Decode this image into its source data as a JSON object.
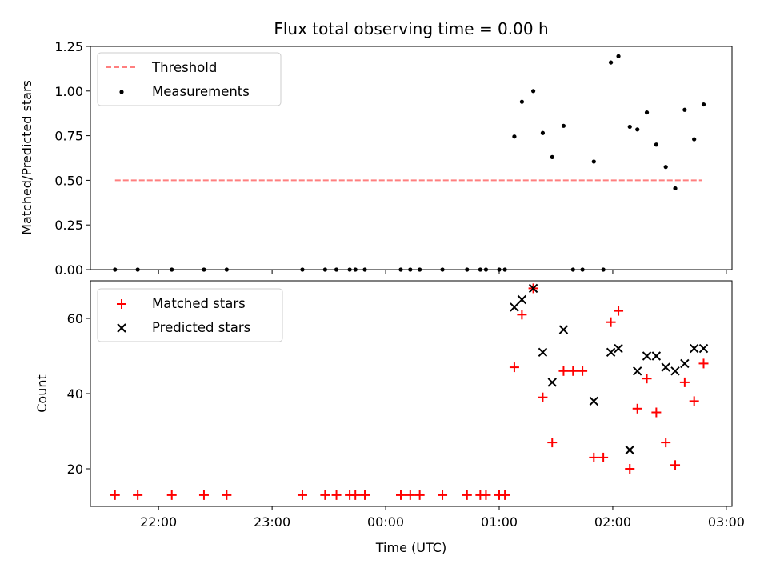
{
  "chart_data": [
    {
      "type": "scatter",
      "title": "Flux total observing time = 0.00 h",
      "xlabel": "",
      "ylabel": "Matched/Predicted stars",
      "ylim": [
        0,
        1.25
      ],
      "yticks": [
        0.0,
        0.25,
        0.5,
        0.75,
        1.0,
        1.25
      ],
      "ytick_labels": [
        "0.00",
        "0.25",
        "0.50",
        "0.75",
        "1.00",
        "1.25"
      ],
      "x_unit": "hours since midnight (UTC)",
      "legend": {
        "position": "top-left",
        "entries": [
          "Threshold",
          "Measurements"
        ]
      },
      "threshold": {
        "name": "Threshold",
        "y": 0.5,
        "x_start": "21:37",
        "x_end": "02:47",
        "color": "#ff7f7f",
        "style": "dashed"
      },
      "series": [
        {
          "name": "Measurements",
          "color": "#000000",
          "marker": "dot",
          "points": [
            [
              "21:37",
              0.0
            ],
            [
              "21:49",
              0.0
            ],
            [
              "22:07",
              0.0
            ],
            [
              "22:24",
              0.0
            ],
            [
              "22:36",
              0.0
            ],
            [
              "23:16",
              0.0
            ],
            [
              "23:28",
              0.0
            ],
            [
              "23:34",
              0.0
            ],
            [
              "23:41",
              0.0
            ],
            [
              "23:44",
              0.0
            ],
            [
              "23:49",
              0.0
            ],
            [
              "00:08",
              0.0
            ],
            [
              "00:13",
              0.0
            ],
            [
              "00:18",
              0.0
            ],
            [
              "00:30",
              0.0
            ],
            [
              "00:43",
              0.0
            ],
            [
              "00:50",
              0.0
            ],
            [
              "00:53",
              0.0
            ],
            [
              "01:00",
              0.0
            ],
            [
              "01:03",
              0.0
            ],
            [
              "01:08",
              0.745
            ],
            [
              "01:12",
              0.94
            ],
            [
              "01:18",
              1.0
            ],
            [
              "01:23",
              0.765
            ],
            [
              "01:28",
              0.63
            ],
            [
              "01:34",
              0.805
            ],
            [
              "01:39",
              0.0
            ],
            [
              "01:44",
              0.0
            ],
            [
              "01:50",
              0.605
            ],
            [
              "01:55",
              0.0
            ],
            [
              "01:59",
              1.16
            ],
            [
              "02:03",
              1.195
            ],
            [
              "02:09",
              0.8
            ],
            [
              "02:13",
              0.785
            ],
            [
              "02:18",
              0.88
            ],
            [
              "02:23",
              0.7
            ],
            [
              "02:28",
              0.575
            ],
            [
              "02:33",
              0.455
            ],
            [
              "02:38",
              0.895
            ],
            [
              "02:43",
              0.73
            ],
            [
              "02:48",
              0.925
            ]
          ]
        }
      ]
    },
    {
      "type": "scatter",
      "title": "",
      "xlabel": "Time (UTC)",
      "ylabel": "Count",
      "ylim": [
        10,
        70
      ],
      "yticks": [
        20,
        40,
        60
      ],
      "xlim": [
        "21:24",
        "03:03"
      ],
      "xticks": [
        "22:00",
        "23:00",
        "00:00",
        "01:00",
        "02:00",
        "03:00"
      ],
      "legend": {
        "position": "top-left",
        "entries": [
          "Matched stars",
          "Predicted stars"
        ]
      },
      "series": [
        {
          "name": "Matched stars",
          "color": "#ff0000",
          "marker": "plus",
          "points": [
            [
              "21:37",
              13
            ],
            [
              "21:49",
              13
            ],
            [
              "22:07",
              13
            ],
            [
              "22:24",
              13
            ],
            [
              "22:36",
              13
            ],
            [
              "23:16",
              13
            ],
            [
              "23:28",
              13
            ],
            [
              "23:34",
              13
            ],
            [
              "23:41",
              13
            ],
            [
              "23:44",
              13
            ],
            [
              "23:49",
              13
            ],
            [
              "00:08",
              13
            ],
            [
              "00:13",
              13
            ],
            [
              "00:18",
              13
            ],
            [
              "00:30",
              13
            ],
            [
              "00:43",
              13
            ],
            [
              "00:50",
              13
            ],
            [
              "00:53",
              13
            ],
            [
              "01:00",
              13
            ],
            [
              "01:03",
              13
            ],
            [
              "01:08",
              47
            ],
            [
              "01:12",
              61
            ],
            [
              "01:18",
              68
            ],
            [
              "01:23",
              39
            ],
            [
              "01:28",
              27
            ],
            [
              "01:34",
              46
            ],
            [
              "01:39",
              46
            ],
            [
              "01:44",
              46
            ],
            [
              "01:50",
              23
            ],
            [
              "01:55",
              23
            ],
            [
              "01:59",
              59
            ],
            [
              "02:03",
              62
            ],
            [
              "02:09",
              20
            ],
            [
              "02:13",
              36
            ],
            [
              "02:18",
              44
            ],
            [
              "02:23",
              35
            ],
            [
              "02:28",
              27
            ],
            [
              "02:33",
              21
            ],
            [
              "02:38",
              43
            ],
            [
              "02:43",
              38
            ],
            [
              "02:48",
              48
            ]
          ]
        },
        {
          "name": "Predicted stars",
          "color": "#000000",
          "marker": "x",
          "points": [
            [
              "01:08",
              63
            ],
            [
              "01:12",
              65
            ],
            [
              "01:18",
              68
            ],
            [
              "01:23",
              51
            ],
            [
              "01:28",
              43
            ],
            [
              "01:34",
              57
            ],
            [
              "01:50",
              38
            ],
            [
              "01:59",
              51
            ],
            [
              "02:03",
              52
            ],
            [
              "02:09",
              25
            ],
            [
              "02:13",
              46
            ],
            [
              "02:18",
              50
            ],
            [
              "02:23",
              50
            ],
            [
              "02:28",
              47
            ],
            [
              "02:33",
              46
            ],
            [
              "02:38",
              48
            ],
            [
              "02:43",
              52
            ],
            [
              "02:48",
              52
            ]
          ]
        }
      ]
    }
  ]
}
